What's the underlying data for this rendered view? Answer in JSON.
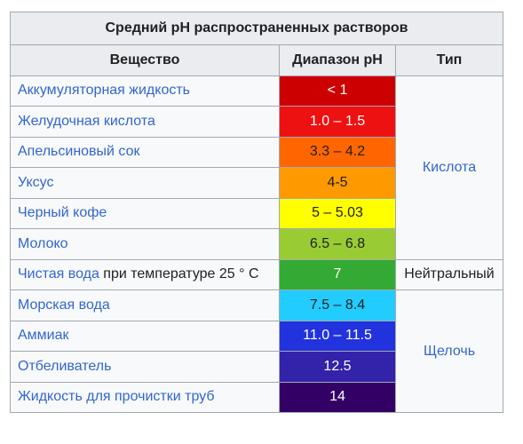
{
  "table": {
    "caption": "Средний pH распространенных растворов",
    "headers": {
      "substance": "Вещество",
      "ph_range": "Диапазон pH",
      "type": "Тип"
    },
    "rows": [
      {
        "link": "Аккумуляторная  жидкость",
        "suffix": "",
        "ph": "< 1",
        "color": "#cc0000"
      },
      {
        "link": "Желудочная кислота",
        "suffix": "",
        "ph": "1.0 – 1.5",
        "color": "#ee1111"
      },
      {
        "link": "Апельсиновый сок",
        "suffix": "",
        "ph": "3.3 – 4.2",
        "color": "#ff6600"
      },
      {
        "link": "Уксус",
        "suffix": "",
        "ph": "4-5",
        "color": "#ff9900"
      },
      {
        "link": "Черный кофе",
        "suffix": "",
        "ph": "5 – 5.03",
        "color": "#ffff00"
      },
      {
        "link": "Молоко",
        "suffix": "",
        "ph": "6.5 – 6.8",
        "color": "#99cc33"
      },
      {
        "link": "Чистая вода",
        "suffix": " при температуре 25 ° C",
        "ph": "7",
        "color": "#33aa33"
      },
      {
        "link": "Морская вода",
        "suffix": "",
        "ph": "7.5 – 8.4",
        "color": "#22ccff"
      },
      {
        "link": "Аммиак",
        "suffix": "",
        "ph": "11.0 – 11.5",
        "color": "#2233dd"
      },
      {
        "link": "Отбеливатель",
        "suffix": "",
        "ph": "12.5",
        "color": "#3322aa"
      },
      {
        "link": "Жидкость для прочистки труб",
        "suffix": "",
        "ph": "14",
        "color": "#330066"
      }
    ],
    "types": {
      "acid": "Кислота",
      "neutral": "Нейтральный",
      "base": "Щелочь"
    }
  }
}
